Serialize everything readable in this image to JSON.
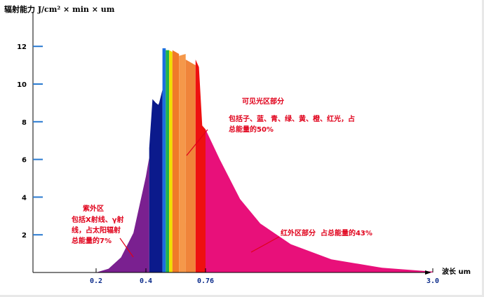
{
  "chart_data": {
    "type": "area",
    "ylabel": "辐射能力 J/cm² × min × um",
    "xlabel": "波长 um",
    "y_ticks": [
      2,
      4,
      6,
      8,
      10,
      12
    ],
    "y_tick_labels": [
      "2",
      "4",
      "6",
      "8",
      "10",
      "12"
    ],
    "x_ticks": [
      0.2,
      0.4,
      0.76,
      3.0
    ],
    "x_tick_labels": [
      "0.2",
      "0.4",
      "0.76",
      "3.0"
    ],
    "ylim": [
      0,
      12.8
    ],
    "series": [
      {
        "x": [
          0.2,
          0.25,
          0.3,
          0.35,
          0.4,
          0.42
        ],
        "y": [
          0,
          0.2,
          0.8,
          2.1,
          5.1,
          6.1
        ]
      },
      {
        "x": [
          0.42,
          0.44,
          0.46,
          0.475,
          0.48,
          0.5
        ],
        "y": [
          6.6,
          9.2,
          9.0,
          8.9,
          9.0,
          9.7
        ]
      },
      {
        "x": [
          0.5,
          0.52
        ],
        "y": [
          11.9,
          11.9
        ]
      },
      {
        "x": [
          0.52,
          0.54
        ],
        "y": [
          11.8,
          11.8
        ]
      },
      {
        "x": [
          0.54,
          0.56
        ],
        "y": [
          11.8,
          11.7
        ]
      },
      {
        "x": [
          0.56,
          0.6
        ],
        "y": [
          11.8,
          11.6
        ]
      },
      {
        "x": [
          0.6,
          0.64
        ],
        "y": [
          11.5,
          11.6
        ]
      },
      {
        "x": [
          0.64,
          0.7
        ],
        "y": [
          11.3,
          11.0
        ]
      },
      {
        "x": [
          0.7,
          0.72,
          0.74,
          0.76
        ],
        "y": [
          11.3,
          10.9,
          7.8,
          7.6
        ]
      },
      {
        "x": [
          0.76,
          0.9,
          1.1,
          1.3,
          1.6,
          2.0,
          2.5,
          3.0
        ],
        "y": [
          7.6,
          6.0,
          3.9,
          2.6,
          1.5,
          0.7,
          0.25,
          0.05
        ]
      }
    ],
    "colors": [
      "#7a2090",
      "#0b1a8c",
      "#1a6fe0",
      "#22b24a",
      "#f0e000",
      "#f07a28",
      "#f5984a",
      "#f0843a",
      "#ee1010",
      "#e8107a"
    ],
    "annotations": [
      {
        "text": "可见光区部分",
        "color": "#e0001a"
      },
      {
        "text": "包括子、蓝、青、绿、黄、橙、红光，占\n总能量的50%",
        "color": "#e0001a"
      },
      {
        "text": "紫外区",
        "color": "#e0001a"
      },
      {
        "text": "包括X射线、γ射\n线，占太阳辐射\n总能量的7%",
        "color": "#e0001a"
      },
      {
        "text": "红外区部分  占总能量的43%",
        "color": "#e0001a"
      }
    ]
  }
}
